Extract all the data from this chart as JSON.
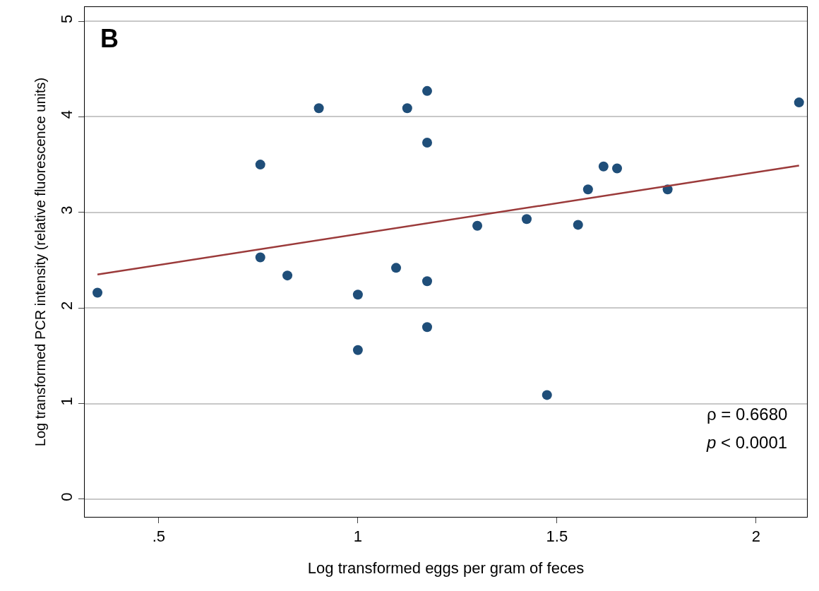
{
  "chart_data": {
    "type": "scatter",
    "xlabel": "Log transformed eggs per gram of feces",
    "ylabel": "Log transformed PCR intensity (relative fluorescence units)",
    "annotations": [
      "B",
      "ρ = 0.6680",
      "p < 0.0001"
    ],
    "xlim": [
      0.314,
      2.128
    ],
    "xticks": [
      {
        "value": 0.5,
        "label": ".5"
      },
      1,
      1.5,
      2
    ],
    "ylim": [
      -0.185,
      5.148
    ],
    "yticks": [
      0,
      1,
      2,
      3,
      4,
      5
    ],
    "grid": "y",
    "series": [
      {
        "color": "#1f4e79",
        "marker": "circle",
        "x": [
          0.346,
          0.755,
          0.755,
          0.823,
          0.902,
          1.0,
          1.0,
          1.096,
          1.124,
          1.174,
          1.174,
          1.174,
          1.174,
          1.3,
          1.424,
          1.475,
          1.553,
          1.578,
          1.617,
          1.651,
          1.778,
          2.108
        ],
        "values": [
          2.16,
          3.5,
          2.53,
          2.34,
          4.09,
          2.14,
          1.56,
          2.42,
          4.09,
          4.27,
          3.73,
          2.28,
          1.8,
          2.86,
          2.93,
          1.09,
          2.87,
          3.24,
          3.48,
          3.46,
          3.24,
          4.15
        ]
      },
      {
        "type": "line",
        "color": "#9b3a3a",
        "marker": "none",
        "x": [
          0.346,
          2.108
        ],
        "values": [
          2.35,
          3.49
        ]
      }
    ]
  }
}
